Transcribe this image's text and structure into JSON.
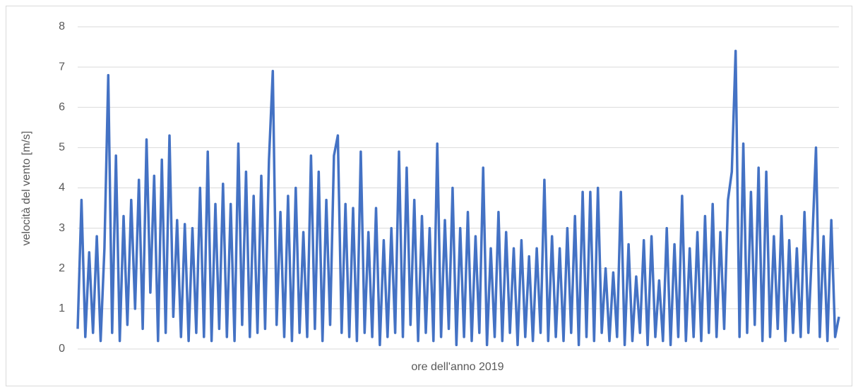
{
  "chart_data": {
    "type": "line",
    "y_label": "velocità del vento [m/s]",
    "x_label": "ore dell'anno 2019",
    "ylim": [
      0,
      8
    ],
    "yticks": [
      0,
      1,
      2,
      3,
      4,
      5,
      6,
      7,
      8
    ],
    "grid": true,
    "series": [
      {
        "color": "#4472c4",
        "values": [
          0.5,
          3.7,
          0.3,
          2.4,
          0.4,
          2.8,
          0.2,
          2.5,
          6.8,
          0.4,
          4.8,
          0.2,
          3.3,
          0.6,
          3.7,
          1.0,
          4.2,
          0.5,
          5.2,
          1.4,
          4.3,
          0.2,
          4.7,
          0.4,
          5.3,
          0.8,
          3.2,
          0.3,
          3.1,
          0.2,
          3.0,
          0.4,
          4.0,
          0.3,
          4.9,
          0.2,
          3.6,
          0.5,
          4.1,
          0.3,
          3.6,
          0.2,
          5.1,
          0.6,
          4.4,
          0.3,
          3.8,
          0.4,
          4.3,
          0.5,
          4.7,
          6.9,
          0.6,
          3.4,
          0.3,
          3.8,
          0.2,
          4.0,
          0.4,
          2.9,
          0.3,
          4.8,
          0.5,
          4.4,
          0.2,
          3.7,
          0.6,
          4.8,
          5.3,
          0.4,
          3.6,
          0.3,
          3.5,
          0.2,
          4.9,
          0.4,
          2.9,
          0.3,
          3.5,
          0.1,
          2.7,
          0.3,
          3.0,
          0.4,
          4.9,
          0.3,
          4.5,
          0.6,
          3.7,
          0.2,
          3.3,
          0.4,
          3.0,
          0.2,
          5.1,
          0.3,
          3.2,
          0.5,
          4.0,
          0.1,
          3.0,
          0.3,
          3.4,
          0.2,
          2.8,
          0.4,
          4.5,
          0.1,
          2.5,
          0.3,
          3.4,
          0.2,
          2.9,
          0.4,
          2.5,
          0.1,
          2.7,
          0.3,
          2.3,
          0.2,
          2.5,
          0.4,
          4.2,
          0.2,
          2.8,
          0.3,
          2.5,
          0.2,
          3.0,
          0.4,
          3.3,
          0.1,
          3.9,
          0.3,
          3.9,
          0.2,
          4.0,
          0.4,
          2.0,
          0.2,
          1.9,
          0.3,
          3.9,
          0.1,
          2.6,
          0.2,
          1.8,
          0.4,
          2.7,
          0.1,
          2.8,
          0.3,
          1.7,
          0.2,
          3.0,
          0.1,
          2.6,
          0.3,
          3.8,
          0.2,
          2.5,
          0.3,
          2.9,
          0.2,
          3.3,
          0.4,
          3.6,
          0.3,
          2.9,
          0.5,
          3.7,
          4.4,
          7.4,
          0.3,
          5.1,
          0.4,
          3.9,
          0.6,
          4.5,
          0.2,
          4.4,
          0.3,
          2.8,
          0.5,
          3.3,
          0.2,
          2.7,
          0.4,
          2.5,
          0.3,
          3.4,
          0.4,
          2.6,
          5.0,
          0.3,
          2.8,
          0.2,
          3.2,
          0.3,
          0.8
        ]
      }
    ]
  }
}
